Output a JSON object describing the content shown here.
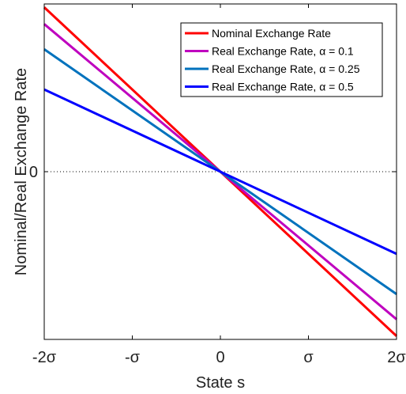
{
  "chart_data": {
    "type": "line",
    "xlabel": "State s",
    "ylabel": "Nominal/Real Exchange Rate",
    "xlim": [
      -2,
      2
    ],
    "ylim": [
      -1.0,
      1.0
    ],
    "x_ticks": [
      {
        "value": -2,
        "label": "-2σ"
      },
      {
        "value": -1,
        "label": "-σ"
      },
      {
        "value": 0,
        "label": "0"
      },
      {
        "value": 1,
        "label": "σ"
      },
      {
        "value": 2,
        "label": "2σ"
      }
    ],
    "y_ticks": [
      {
        "value": 0,
        "label": "0"
      }
    ],
    "zero_line": {
      "style": "dotted",
      "color": "#000000"
    },
    "grid": false,
    "legend_position": "top-right",
    "series": [
      {
        "name": "Nominal Exchange Rate",
        "color": "#ff0000",
        "x": [
          -2,
          2
        ],
        "y": [
          0.98,
          -0.98
        ]
      },
      {
        "name": "Real Exchange Rate, α = 0.1",
        "color": "#bf00bf",
        "x": [
          -2,
          2
        ],
        "y": [
          0.88,
          -0.88
        ]
      },
      {
        "name": "Real Exchange Rate, α = 0.25",
        "color": "#0072bd",
        "x": [
          -2,
          2
        ],
        "y": [
          0.73,
          -0.73
        ]
      },
      {
        "name": "Real Exchange Rate, α = 0.5",
        "color": "#0000ff",
        "x": [
          -2,
          2
        ],
        "y": [
          0.49,
          -0.49
        ]
      }
    ]
  }
}
